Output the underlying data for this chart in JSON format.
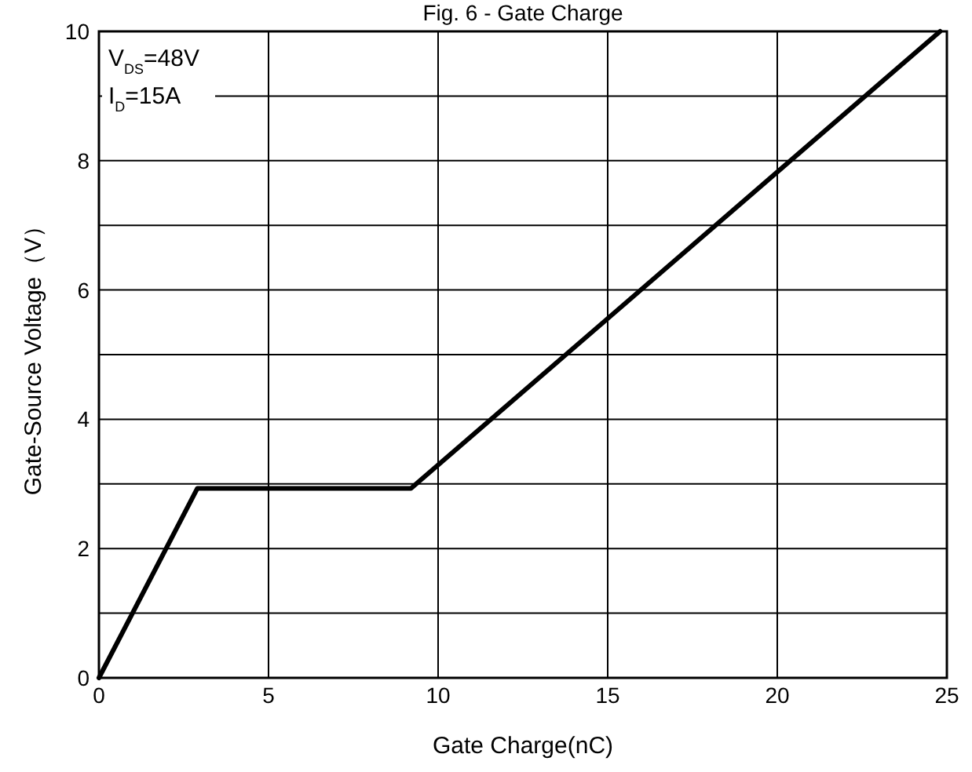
{
  "chart_data": {
    "type": "line",
    "title": "Fig. 6 - Gate Charge",
    "xlabel": "Gate Charge(nC)",
    "ylabel": "Gate-Source Voltage（V）",
    "annotations": [
      "V$_{DS}$=48V",
      "I$_{D}$=15A"
    ],
    "x": [
      0,
      2.9,
      9.2,
      24.8
    ],
    "series": [
      {
        "color": "#000000",
        "values": [
          0,
          2.93,
          2.93,
          10
        ]
      }
    ],
    "xlim": [
      0,
      25
    ],
    "xticks": [
      0,
      5,
      10,
      15,
      20,
      25
    ],
    "ylim": [
      0,
      10
    ],
    "yticks": [
      0,
      {
        "value": 1,
        "label": null
      },
      2,
      {
        "value": 3,
        "label": null
      },
      4,
      {
        "value": 5,
        "label": null
      },
      6,
      {
        "value": 7,
        "label": null
      },
      8,
      {
        "value": 9,
        "label": null
      },
      10
    ],
    "grid": true,
    "marker": "none",
    "line_style": "solid"
  }
}
